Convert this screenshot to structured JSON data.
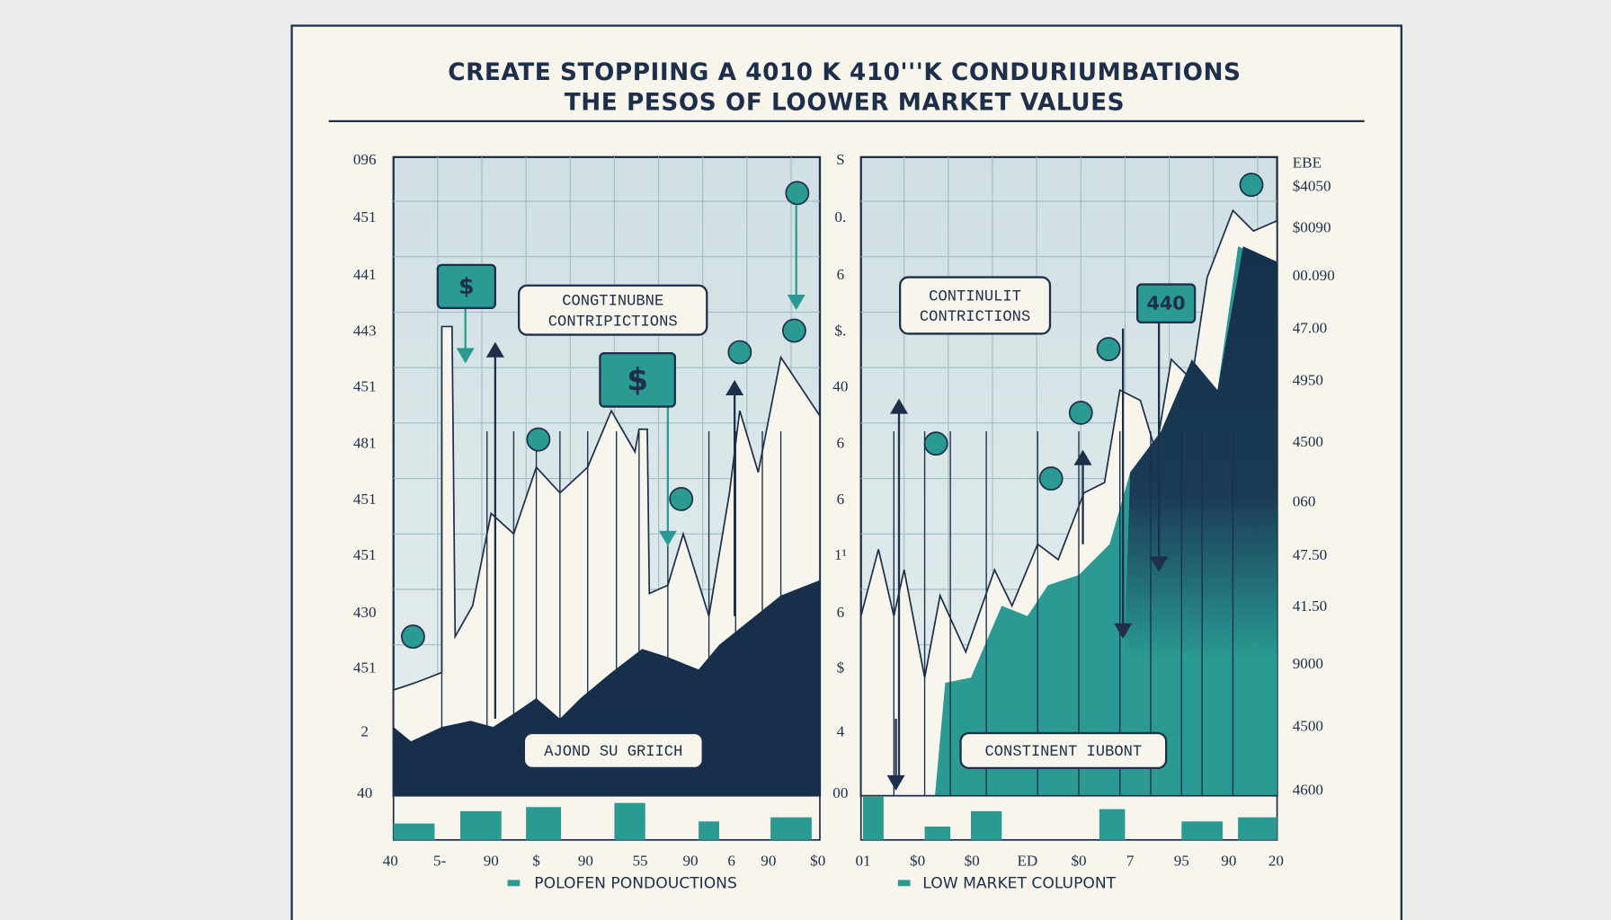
{
  "title": [
    "CREATE STOPPIING A 4010 K 410'''K CONDURIUMBATIONS",
    "THE PESOS OF LOOWER MARKET VALUES"
  ],
  "left_axis": [
    "096",
    "451",
    "441",
    "443",
    "451",
    "481",
    "451",
    "451",
    "430",
    "451",
    "2",
    "40"
  ],
  "middle_axis": [
    "S",
    "0.",
    "6",
    "$.",
    "40",
    "6",
    "6",
    "1¹",
    "6",
    "$",
    "4",
    "00"
  ],
  "right_axis": [
    "EBE",
    "$4050",
    "$0090",
    "00.090",
    "47.00",
    "4950",
    "4500",
    "060",
    "47.50",
    "41.50",
    "9000",
    "4500",
    "4600"
  ],
  "x_labels": [
    "40",
    "5-",
    "90",
    "$",
    "90",
    "55",
    "90",
    "6",
    "90",
    "$0",
    "01",
    "$0",
    "$0",
    "ED",
    "$0",
    "7",
    "95",
    "90",
    "20"
  ],
  "callouts": [
    [
      "CONGTINUBNE",
      "CONTRIPICTIONS"
    ],
    [
      "CONTINULIT",
      "CONTRICTIONS"
    ],
    [
      "AJOND SU GRIICH"
    ],
    [
      "CONSTINENT IUBONT"
    ]
  ],
  "tags": [
    "$",
    "$",
    "440"
  ],
  "legend": [
    "POLOFEN PONDOUCTIONS",
    "LOW MARKET COLUPONT"
  ]
}
